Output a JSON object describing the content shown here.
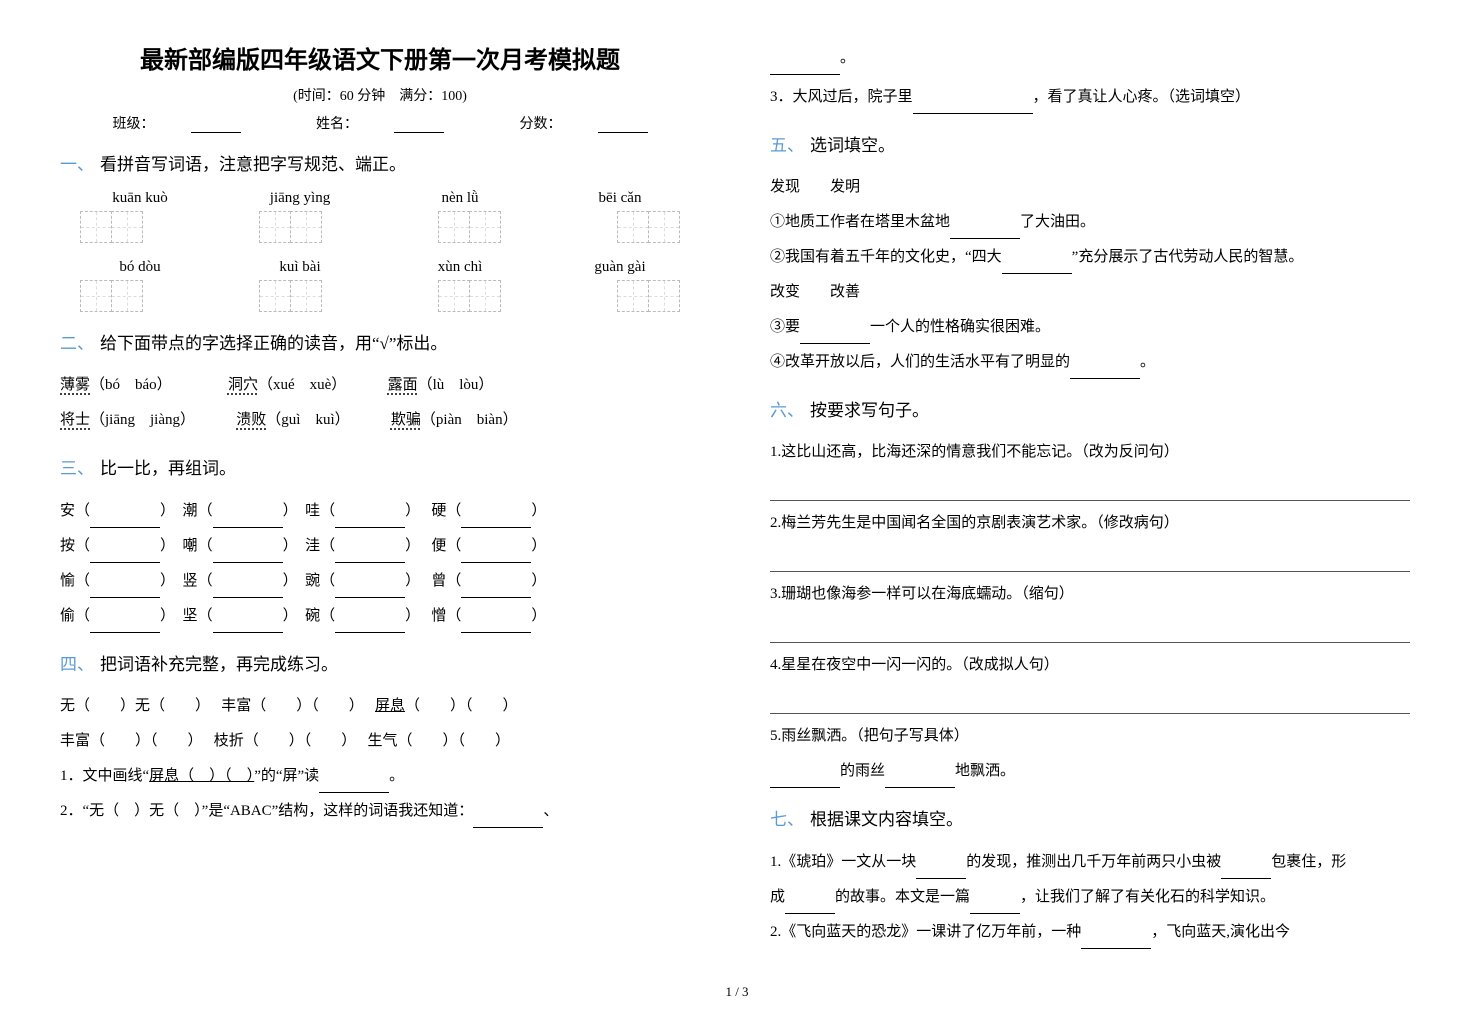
{
  "doc": {
    "title": "最新部编版四年级语文下册第一次月考模拟题",
    "meta": "(时间：60 分钟　满分：100)",
    "info": {
      "class": "班级：",
      "name": "姓名：",
      "score": "分数："
    },
    "page_num": "1 / 3"
  },
  "s1": {
    "head": "看拼音写词语，注意把字写规范、端正。",
    "row1": [
      "kuān kuò",
      "jiāng yìng",
      "nèn lǜ",
      "bēi cǎn"
    ],
    "row2": [
      "bó dòu",
      "kuì bài",
      "xùn chì",
      "guàn gài"
    ],
    "box_count": 2
  },
  "s2": {
    "head": "给下面带点的字选择正确的读音，用“√”标出。",
    "items": [
      {
        "w": "薄雾",
        "a": "（bó　báo）"
      },
      {
        "w": "洞穴",
        "a": "（xué　xuè）"
      },
      {
        "w": "露面",
        "a": "（lù　lòu）"
      },
      {
        "w": "将士",
        "a": "（jiāng　jiàng）"
      },
      {
        "w": "溃败",
        "a": "（guì　kuì）"
      },
      {
        "w": "欺骗",
        "a": "（piàn　biàn）"
      }
    ]
  },
  "s3": {
    "head": "比一比，再组词。",
    "rows": [
      [
        "安",
        "潮",
        "哇",
        "硬"
      ],
      [
        "按",
        "嘲",
        "洼",
        "便"
      ],
      [
        "愉",
        "竖",
        "豌",
        "曾"
      ],
      [
        "偷",
        "坚",
        "碗",
        "憎"
      ]
    ]
  },
  "s4": {
    "head": "把词语补充完整，再完成练习。",
    "line1": "无（　　）无（　　）　 丰富（　　）（　　）　 ",
    "line1b_pre": "屏息",
    "line1b_post": "（　　）（　　）",
    "line2": "丰富（　　）（　　）　 枝折（　　）（　　）　 生气（　　）（　　）",
    "q1a": "1．文中画线“",
    "q1b": "屏息（　）（　）",
    "q1c": "”的“屏”读",
    "q1d": "。",
    "q2": "2．“无（　）无（　）”是“ABAC”结构，这样的词语我还知道：",
    "q2tail": "、",
    "q2end": "。",
    "q3a": "3．大风过后，院子里",
    "q3b": "，看了真让人心疼。（选词填空）"
  },
  "s5": {
    "head": "选词填空。",
    "g1": "发现　　发明",
    "l1a": "①地质工作者在塔里木盆地",
    "l1b": "了大油田。",
    "l2a": "②我国有着五千年的文化史，“四大",
    "l2b": "”充分展示了古代劳动人民的智慧。",
    "g2": "改变　　改善",
    "l3a": "③要",
    "l3b": "一个人的性格确实很困难。",
    "l4a": "④改革开放以后，人们的生活水平有了明显的",
    "l4b": "。"
  },
  "s6": {
    "head": "按要求写句子。",
    "q1": "1.这比山还高，比海还深的情意我们不能忘记。（改为反问句）",
    "q2": "2.梅兰芳先生是中国闻名全国的京剧表演艺术家。（修改病句）",
    "q3": "3.珊瑚也像海参一样可以在海底蠕动。（缩句）",
    "q4": "4.星星在夜空中一闪一闪的。（改成拟人句）",
    "q5": "5.雨丝飘洒。（把句子写具体）",
    "q5tail_a": "的雨丝",
    "q5tail_b": "地飘洒。"
  },
  "s7": {
    "head": "根据课文内容填空。",
    "l1a": "1.《琥珀》一文从一块",
    "l1b": "的发现，推测出几千万年前两只小虫被",
    "l1c": "包裹住，形",
    "l1d": "成",
    "l1e": "的故事。本文是一篇",
    "l1f": "，让我们了解了有关化石的科学知识。",
    "l2a": "2.《飞向蓝天的恐龙》一课讲了亿万年前，一种",
    "l2b": "，飞向蓝天,演化出今"
  },
  "numbers": {
    "n1": "一、",
    "n2": "二、",
    "n3": "三、",
    "n4": "四、",
    "n5": "五、",
    "n6": "六、",
    "n7": "七、"
  },
  "colors": {
    "accent": "#5b9bd5",
    "text": "#000000",
    "bg": "#ffffff",
    "grid": "#cccccc"
  }
}
